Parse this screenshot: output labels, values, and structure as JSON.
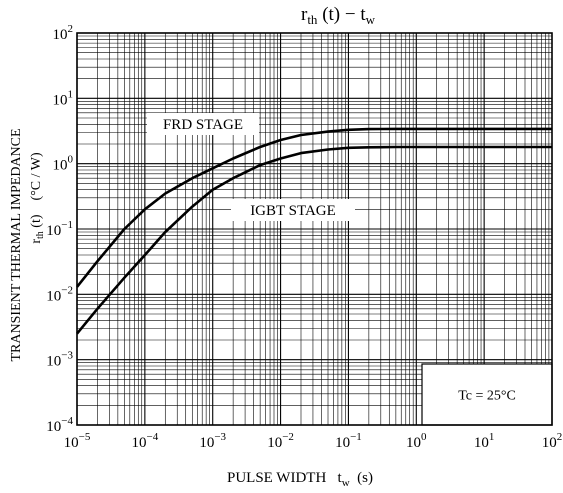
{
  "chart_data": {
    "type": "line",
    "title": {
      "main": "r",
      "main_sub": "th",
      "mid": " (t)  −  t",
      "end_sub": "w"
    },
    "xlabel": {
      "pre": "PULSE WIDTH   t",
      "sub": "w",
      "post": "  (s)"
    },
    "ylabel": {
      "line1": "TRANSIENT THERMAL IMPEDANCE",
      "line2_main": "r",
      "line2_sub": "th",
      "line2_mid": " (t)    (°C / W)"
    },
    "x_scale": "log",
    "y_scale": "log",
    "xlim": [
      1e-05,
      100
    ],
    "ylim": [
      0.0001,
      100
    ],
    "grid": true,
    "x_ticks": [
      {
        "value": 1e-05,
        "base": "10",
        "exp": "−5"
      },
      {
        "value": 0.0001,
        "base": "10",
        "exp": "−4"
      },
      {
        "value": 0.001,
        "base": "10",
        "exp": "−3"
      },
      {
        "value": 0.01,
        "base": "10",
        "exp": "−2"
      },
      {
        "value": 0.1,
        "base": "10",
        "exp": "−1"
      },
      {
        "value": 1,
        "base": "10",
        "exp": "0"
      },
      {
        "value": 10,
        "base": "10",
        "exp": "1"
      },
      {
        "value": 100,
        "base": "10",
        "exp": "2"
      }
    ],
    "y_ticks": [
      {
        "value": 0.0001,
        "base": "10",
        "exp": "−4"
      },
      {
        "value": 0.001,
        "base": "10",
        "exp": "−3"
      },
      {
        "value": 0.01,
        "base": "10",
        "exp": "−2"
      },
      {
        "value": 0.1,
        "base": "10",
        "exp": "−1"
      },
      {
        "value": 1,
        "base": "10",
        "exp": "0"
      },
      {
        "value": 10,
        "base": "10",
        "exp": "1"
      },
      {
        "value": 100,
        "base": "10",
        "exp": "2"
      }
    ],
    "series": [
      {
        "name": "FRD STAGE",
        "x": [
          1e-05,
          2e-05,
          5e-05,
          0.0001,
          0.0002,
          0.0005,
          0.001,
          0.002,
          0.005,
          0.01,
          0.02,
          0.05,
          0.1,
          0.2,
          0.5,
          1,
          10,
          100
        ],
        "y": [
          0.013,
          0.032,
          0.1,
          0.2,
          0.35,
          0.6,
          0.85,
          1.2,
          1.8,
          2.3,
          2.75,
          3.1,
          3.3,
          3.38,
          3.4,
          3.4,
          3.4,
          3.4
        ]
      },
      {
        "name": "IGBT STAGE",
        "x": [
          1e-05,
          2e-05,
          5e-05,
          0.0001,
          0.0002,
          0.0005,
          0.001,
          0.002,
          0.005,
          0.01,
          0.02,
          0.05,
          0.1,
          0.2,
          0.5,
          1,
          10,
          100
        ],
        "y": [
          0.0025,
          0.006,
          0.018,
          0.04,
          0.09,
          0.22,
          0.4,
          0.6,
          0.95,
          1.2,
          1.45,
          1.65,
          1.75,
          1.78,
          1.8,
          1.8,
          1.8,
          1.8
        ]
      }
    ],
    "annotation": "Tc = 25°C"
  }
}
